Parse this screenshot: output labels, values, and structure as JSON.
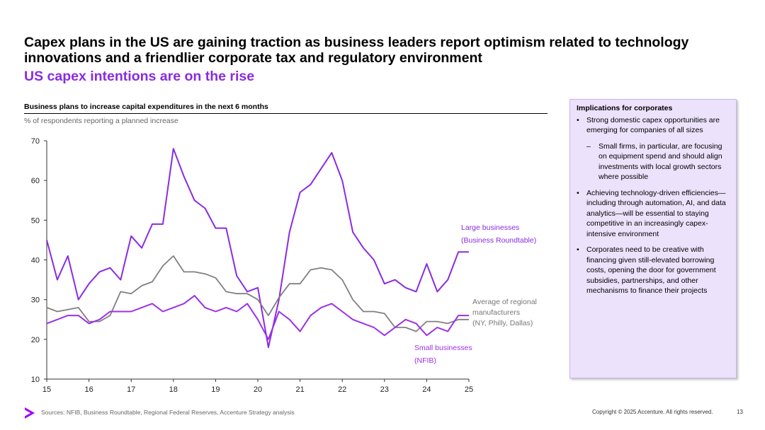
{
  "slide": {
    "title": "Capex plans in the US are gaining traction as business leaders report optimism related to technology innovations and a friendlier corporate tax and regulatory environment",
    "subtitle": "US capex intentions are on the rise",
    "chart_heading": "Business plans to increase capital expenditures in the next 6 months",
    "chart_units": "% of respondents reporting a planned increase"
  },
  "colors": {
    "large": "#8a2be2",
    "small": "#9b30e8",
    "regional": "#808080",
    "accent": "#a100ff"
  },
  "chart_data": {
    "type": "line",
    "title": "Business plans to increase capital expenditures in the next 6 months",
    "ylabel": "% of respondents reporting a planned increase",
    "xlabel": "",
    "ylim": [
      10,
      70
    ],
    "xlim": [
      15,
      25
    ],
    "yticks": [
      "10",
      "20",
      "30",
      "40",
      "50",
      "60",
      "70"
    ],
    "xticks": [
      "15",
      "16",
      "17",
      "18",
      "19",
      "20",
      "21",
      "22",
      "23",
      "24",
      "25"
    ],
    "grid": false,
    "series": [
      {
        "name": "Large businesses (Business Roundtable)",
        "label_lines": [
          "Large businesses",
          "(Business Roundtable)"
        ],
        "color": "#8a2be2",
        "x": [
          15,
          15.25,
          15.5,
          15.75,
          16,
          16.25,
          16.5,
          16.75,
          17,
          17.25,
          17.5,
          17.75,
          18,
          18.25,
          18.5,
          18.75,
          19,
          19.25,
          19.5,
          19.75,
          20,
          20.25,
          20.5,
          20.75,
          21,
          21.25,
          21.5,
          21.75,
          22,
          22.25,
          22.5,
          22.75,
          23,
          23.25,
          23.5,
          23.75,
          24,
          24.25,
          24.5,
          24.75,
          25
        ],
        "y": [
          45,
          35,
          41,
          30,
          34,
          37,
          38,
          35,
          46,
          43,
          49,
          49,
          68,
          61,
          55,
          53,
          48,
          48,
          36,
          32,
          33,
          18,
          30,
          47,
          57,
          59,
          63,
          67,
          60,
          47,
          43,
          40,
          34,
          35,
          33,
          32,
          39,
          32,
          35,
          42,
          42
        ]
      },
      {
        "name": "Average of regional manufacturers (NY, Philly, Dallas)",
        "label_lines": [
          "Average of regional",
          "manufacturers",
          "(NY, Philly, Dallas)"
        ],
        "color": "#808080",
        "x": [
          15,
          15.25,
          15.5,
          15.75,
          16,
          16.25,
          16.5,
          16.75,
          17,
          17.25,
          17.5,
          17.75,
          18,
          18.25,
          18.5,
          18.75,
          19,
          19.25,
          19.5,
          19.75,
          20,
          20.25,
          20.5,
          20.75,
          21,
          21.25,
          21.5,
          21.75,
          22,
          22.25,
          22.5,
          22.75,
          23,
          23.25,
          23.5,
          23.75,
          24,
          24.25,
          24.5,
          24.75,
          25
        ],
        "y": [
          28,
          27,
          27.5,
          28,
          24.5,
          24.5,
          26,
          32,
          31.5,
          33.5,
          34.5,
          38.5,
          41,
          37,
          37,
          36.5,
          35.5,
          32,
          31.5,
          31.5,
          30,
          26,
          30.5,
          34,
          34,
          37.5,
          38,
          37.5,
          35,
          30,
          27,
          27,
          26.5,
          23,
          23,
          22,
          24.5,
          24.5,
          24,
          25,
          25
        ]
      },
      {
        "name": "Small businesses (NFIB)",
        "label_lines": [
          "Small businesses",
          "(NFIB)"
        ],
        "color": "#9b30e8",
        "x": [
          15,
          15.25,
          15.5,
          15.75,
          16,
          16.25,
          16.5,
          16.75,
          17,
          17.25,
          17.5,
          17.75,
          18,
          18.25,
          18.5,
          18.75,
          19,
          19.25,
          19.5,
          19.75,
          20,
          20.25,
          20.5,
          20.75,
          21,
          21.25,
          21.5,
          21.75,
          22,
          22.25,
          22.5,
          22.75,
          23,
          23.25,
          23.5,
          23.75,
          24,
          24.25,
          24.5,
          24.75,
          25
        ],
        "y": [
          24,
          25,
          26,
          26,
          24,
          25,
          27,
          27,
          27,
          28,
          29,
          27,
          28,
          29,
          31,
          28,
          27,
          28,
          27,
          29,
          25,
          20,
          27,
          25,
          22,
          26,
          28,
          29,
          27,
          25,
          24,
          23,
          21,
          23,
          25,
          24,
          21,
          23,
          22,
          26,
          26
        ]
      }
    ]
  },
  "panel": {
    "title": "Implications for corporates",
    "bullet1": "Strong domestic capex opportunities are emerging for companies of all sizes",
    "sub_bullet1": "Small firms, in particular, are focusing on equipment spend and should align investments with local growth sectors where possible",
    "bullet2": "Achieving technology-driven efficiencies—including through automation, AI, and data analytics—will be essential to staying competitive in an increasingly capex-intensive environment",
    "bullet3": "Corporates need to be creative with financing given still-elevated borrowing costs, opening the door for government subsidies, partnerships, and other mechanisms to finance their projects"
  },
  "footer": {
    "sources": "Sources: NFIB, Business Roundtable, Regional Federal Reserves, Accenture Strategy analysis",
    "copyright": "Copyright © 2025 Accenture. All rights reserved.",
    "page_number": "13"
  }
}
